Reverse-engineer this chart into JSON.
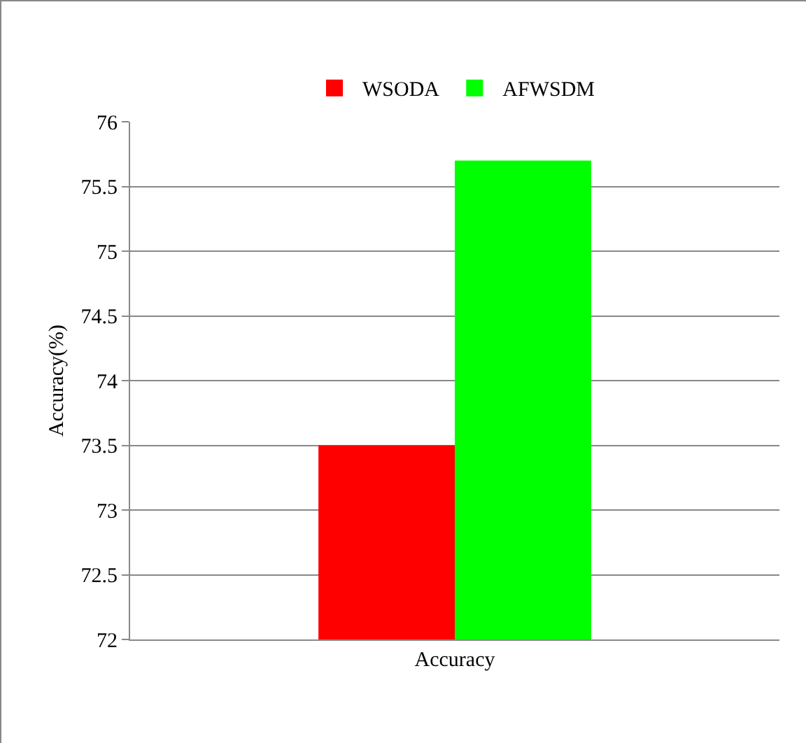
{
  "chart_data": {
    "type": "bar",
    "ylabel": "Accuracy(%)",
    "categories": [
      "Accuracy"
    ],
    "series": [
      {
        "name": "WSODA",
        "color": "#ff0000",
        "values": [
          73.5
        ]
      },
      {
        "name": "AFWSDM",
        "color": "#00ff00",
        "values": [
          75.7
        ]
      }
    ],
    "ylim": [
      72,
      76
    ],
    "yticks": [
      72,
      72.5,
      73,
      73.5,
      74,
      74.5,
      75,
      75.5,
      76
    ],
    "grid": "y",
    "legend": "top"
  }
}
